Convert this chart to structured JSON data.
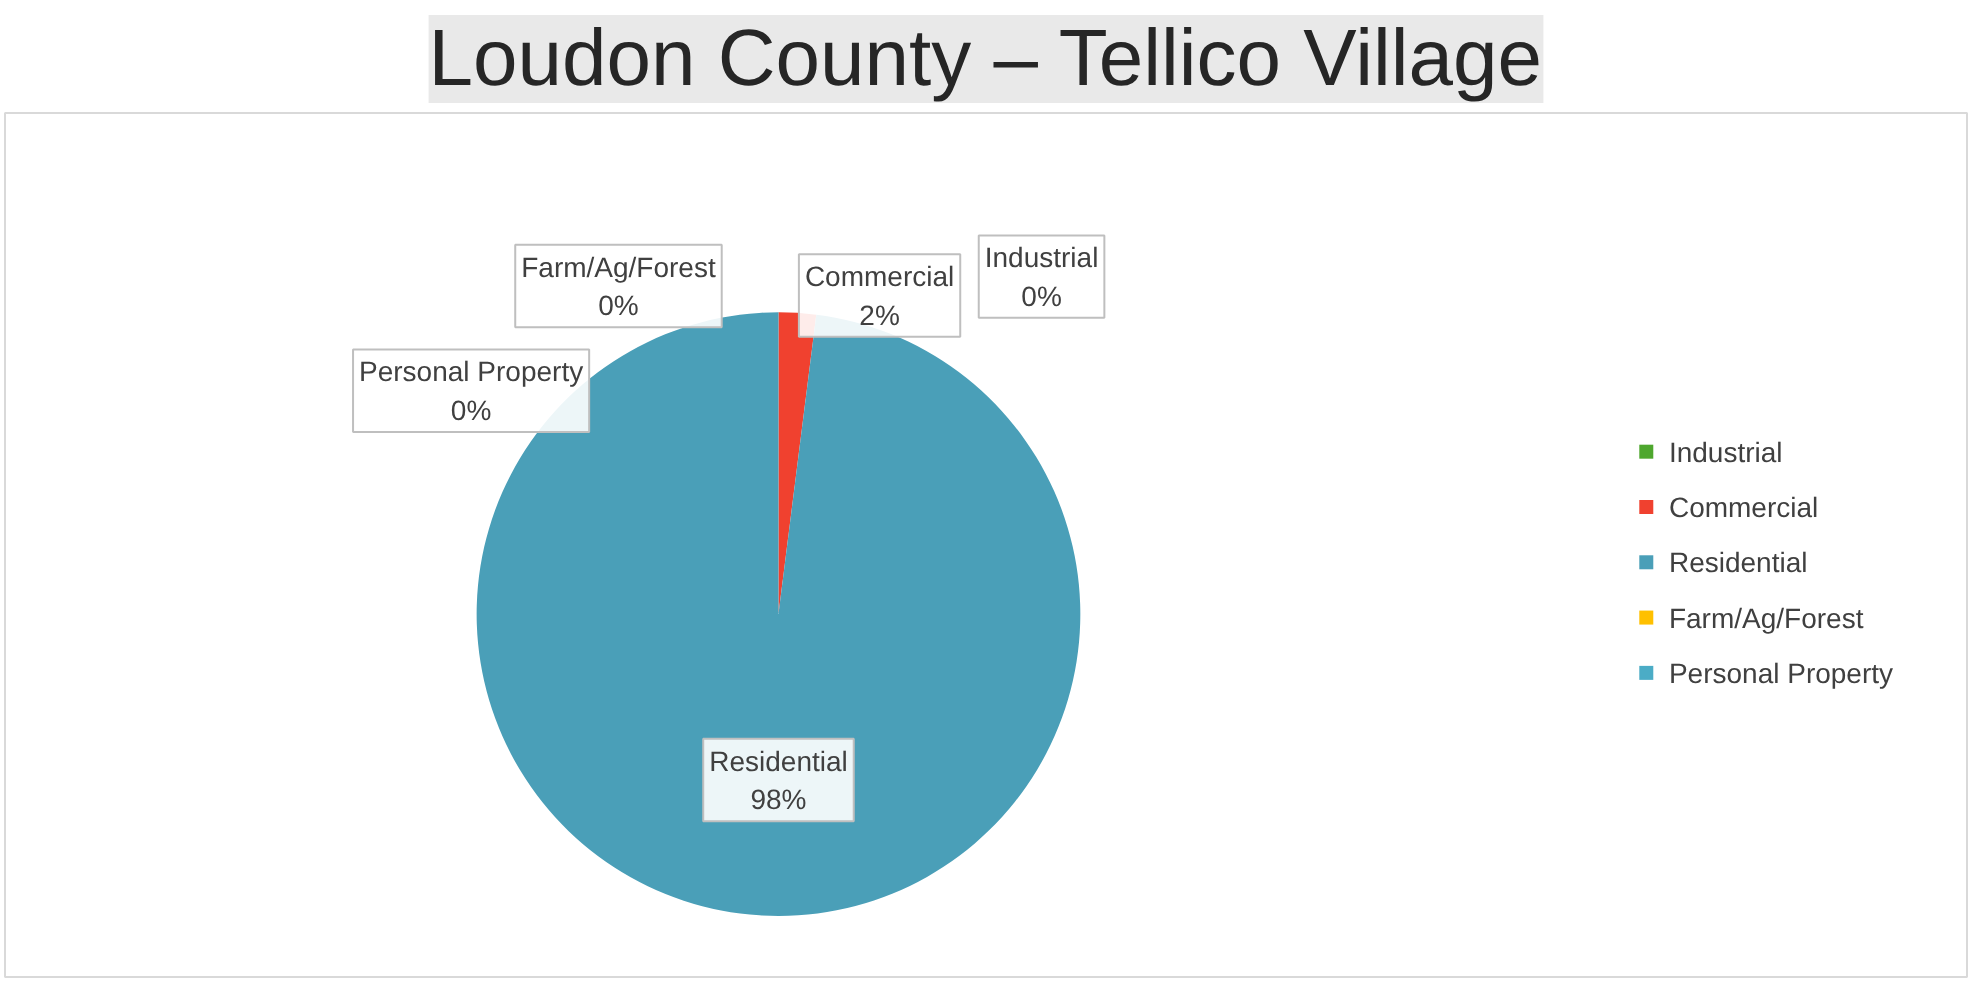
{
  "chart_data": {
    "type": "pie",
    "title": "Loudon County – Tellico Village",
    "categories": [
      "Industrial",
      "Commercial",
      "Residential",
      "Farm/Ag/Forest",
      "Personal Property"
    ],
    "values": [
      0,
      2,
      98,
      0,
      0
    ],
    "value_labels": [
      "0%",
      "2%",
      "98%",
      "0%",
      "0%"
    ],
    "colors": [
      "#4ea72e",
      "#f0412f",
      "#4a9fb8",
      "#ffc000",
      "#4bacc6"
    ],
    "data_labels": true,
    "legend": "right"
  }
}
